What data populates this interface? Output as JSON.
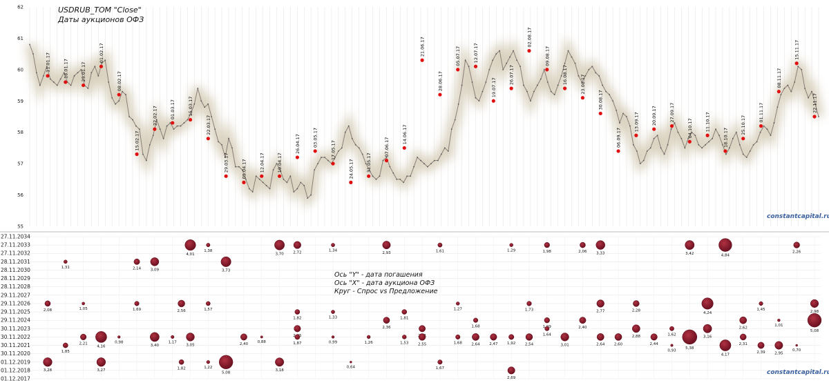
{
  "top_title": "USDRUB_TOM  \"Close\"",
  "top_subtitle": "Даты  аукционов ОФЗ",
  "watermark": "constantcapital.ru",
  "legend_lines": [
    "Ось \"Y\" -  дата погашения",
    "Ось \"X\" - дата аукциона ОФЗ",
    "Круг - Спрос vs Предложение"
  ],
  "colors": {
    "line": "#8a7e78",
    "glow": "#d6cdb8",
    "dot": "#e01010",
    "bubble": "#8a1c2c",
    "grid": "#d8d8d8",
    "brand": "#3a5f9e"
  },
  "chart_data": [
    {
      "type": "line",
      "title": "USDRUB_TOM  \"Close\"",
      "subtitle": "Даты  аукционов ОФЗ",
      "ylim": [
        55,
        62
      ],
      "yticks": [
        55,
        56,
        57,
        58,
        59,
        60,
        61,
        62
      ],
      "grid": "vertical",
      "close_series": [
        60.8,
        60.5,
        59.9,
        59.5,
        59.8,
        60.1,
        59.7,
        59.6,
        59.5,
        59.7,
        59.9,
        59.6,
        59.5,
        59.8,
        59.9,
        60.0,
        59.5,
        59.4,
        59.9,
        60.1,
        59.8,
        60.2,
        60.3,
        59.6,
        59.1,
        58.9,
        59.0,
        59.3,
        59.2,
        58.5,
        58.4,
        58.2,
        58.1,
        57.3,
        57.1,
        57.6,
        57.9,
        58.4,
        58.1,
        57.8,
        58.2,
        58.3,
        58.1,
        58.2,
        58.2,
        58.3,
        58.4,
        58.6,
        58.9,
        59.4,
        59.0,
        58.8,
        58.9,
        58.5,
        58.1,
        57.7,
        57.6,
        57.2,
        57.8,
        57.5,
        56.9,
        56.9,
        56.8,
        56.5,
        56.2,
        56.1,
        56.6,
        56.5,
        56.4,
        56.3,
        56.2,
        56.8,
        57.0,
        56.8,
        56.5,
        56.4,
        56.6,
        56.1,
        56.2,
        56.4,
        56.3,
        55.9,
        56.0,
        56.8,
        57.0,
        57.2,
        57.2,
        57.1,
        57.0,
        57.2,
        57.4,
        57.5,
        58.0,
        58.2,
        57.8,
        57.6,
        57.5,
        57.3,
        57.0,
        56.8,
        56.6,
        56.5,
        56.6,
        57.1,
        57.2,
        56.9,
        56.7,
        56.5,
        56.5,
        56.4,
        56.6,
        56.6,
        56.9,
        57.2,
        57.1,
        57.0,
        56.9,
        57.0,
        57.1,
        57.1,
        57.3,
        57.5,
        57.4,
        58.1,
        58.4,
        58.9,
        59.5,
        60.3,
        60.1,
        59.6,
        59.1,
        59.0,
        59.3,
        59.6,
        60.0,
        60.3,
        60.5,
        60.6,
        60.0,
        60.2,
        60.4,
        60.6,
        60.3,
        60.1,
        59.5,
        59.3,
        59.0,
        59.3,
        59.5,
        59.7,
        60.0,
        59.6,
        59.3,
        59.2,
        59.5,
        59.8,
        60.2,
        60.6,
        60.4,
        60.2,
        59.8,
        59.6,
        59.8,
        60.0,
        60.1,
        59.9,
        59.8,
        59.5,
        59.3,
        59.2,
        59.0,
        58.7,
        58.3,
        58.6,
        58.5,
        58.2,
        57.6,
        57.4,
        57.0,
        57.1,
        57.4,
        57.5,
        57.8,
        57.9,
        57.5,
        57.3,
        57.6,
        58.1,
        58.3,
        58.0,
        57.8,
        57.5,
        57.8,
        58.0,
        57.9,
        57.6,
        57.5,
        57.6,
        57.7,
        57.8,
        58.1,
        57.9,
        57.6,
        57.3,
        57.5,
        57.8,
        58.0,
        57.6,
        57.3,
        57.2,
        57.4,
        57.6,
        57.7,
        58.0,
        58.2,
        58.1,
        57.9,
        58.3,
        58.8,
        59.2,
        59.4,
        59.5,
        59.3,
        59.6,
        60.1,
        60.0,
        59.4,
        59.1,
        59.3,
        58.9,
        58.5
      ],
      "auctions": [
        {
          "date": "11.01.17",
          "value": 59.8
        },
        {
          "date": "18.01.17",
          "value": 59.6
        },
        {
          "date": "25.01.17",
          "value": 59.5
        },
        {
          "date": "01.02.17",
          "value": 60.1
        },
        {
          "date": "08.02.17",
          "value": 59.2
        },
        {
          "date": "15.02.17",
          "value": 57.3
        },
        {
          "date": "22.02.17",
          "value": 58.1
        },
        {
          "date": "01.03.17",
          "value": 58.3
        },
        {
          "date": "15.03.17",
          "value": 58.4
        },
        {
          "date": "22.03.17",
          "value": 57.8
        },
        {
          "date": "29.03.17",
          "value": 56.6
        },
        {
          "date": "05.04.17",
          "value": 56.4
        },
        {
          "date": "12.04.17",
          "value": 56.6
        },
        {
          "date": "19.04.17",
          "value": 56.6
        },
        {
          "date": "26.04.17",
          "value": 57.2
        },
        {
          "date": "03.05.17",
          "value": 57.4
        },
        {
          "date": "17.05.17",
          "value": 57.0
        },
        {
          "date": "24.05.17",
          "value": 56.4
        },
        {
          "date": "31.05.17",
          "value": 56.6
        },
        {
          "date": "07.06.17",
          "value": 57.1
        },
        {
          "date": "14.06.17",
          "value": 57.5
        },
        {
          "date": "21.06.17",
          "value": 60.3
        },
        {
          "date": "28.06.17",
          "value": 59.2
        },
        {
          "date": "05.07.17",
          "value": 60.0
        },
        {
          "date": "12.07.17",
          "value": 60.1
        },
        {
          "date": "19.07.17",
          "value": 59.0
        },
        {
          "date": "26.07.17",
          "value": 59.4
        },
        {
          "date": "02.08.17",
          "value": 60.6
        },
        {
          "date": "09.08.17",
          "value": 60.0
        },
        {
          "date": "16.08.17",
          "value": 59.4
        },
        {
          "date": "23.08.17",
          "value": 59.1
        },
        {
          "date": "30.08.17",
          "value": 58.6
        },
        {
          "date": "06.09.17",
          "value": 57.4
        },
        {
          "date": "13.09.17",
          "value": 57.9
        },
        {
          "date": "20.09.17",
          "value": 58.1
        },
        {
          "date": "27.09.17",
          "value": 58.2
        },
        {
          "date": "04.10.17",
          "value": 57.7
        },
        {
          "date": "11.10.17",
          "value": 57.9
        },
        {
          "date": "18.10.17",
          "value": 57.4
        },
        {
          "date": "25.10.17",
          "value": 57.8
        },
        {
          "date": "01.11.17",
          "value": 58.2
        },
        {
          "date": "08.11.17",
          "value": 59.3
        },
        {
          "date": "15.11.17",
          "value": 60.2
        },
        {
          "date": "22.11.17",
          "value": 58.5
        }
      ]
    },
    {
      "type": "scatter",
      "ylabel": "Ось \"Y\" -  дата погашения",
      "xlabel": "Ось \"X\" - дата аукциона ОФЗ",
      "size_label": "Круг - Спрос vs Предложение",
      "y_categories": [
        "27.11.2034",
        "27.11.2033",
        "27.11.2032",
        "28.11.2031",
        "28.11.2030",
        "28.11.2029",
        "28.11.2028",
        "29.11.2027",
        "29.11.2026",
        "29.11.2025",
        "29.11.2024",
        "30.11.2023",
        "30.11.2022",
        "30.11.2021",
        "30.11.2020",
        "01.12.2019",
        "01.12.2018",
        "01.12.2017"
      ],
      "points": [
        {
          "x": "11.01.17",
          "y": "01.12.2019",
          "size": 3.28
        },
        {
          "x": "11.01.17",
          "y": "29.11.2026",
          "size": 2.08
        },
        {
          "x": "18.01.17",
          "y": "28.11.2031",
          "size": 1.31
        },
        {
          "x": "18.01.17",
          "y": "30.11.2021",
          "size": 1.85
        },
        {
          "x": "25.01.17",
          "y": "29.11.2026",
          "size": 1.05
        },
        {
          "x": "25.01.17",
          "y": "30.11.2022",
          "size": 2.21
        },
        {
          "x": "01.02.17",
          "y": "30.11.2022",
          "size": 4.16
        },
        {
          "x": "01.02.17",
          "y": "01.12.2019",
          "size": 3.27
        },
        {
          "x": "08.02.17",
          "y": "30.11.2022",
          "size": 0.98
        },
        {
          "x": "15.02.17",
          "y": "28.11.2031",
          "size": 2.14
        },
        {
          "x": "15.02.17",
          "y": "29.11.2026",
          "size": 1.69
        },
        {
          "x": "22.02.17",
          "y": "28.11.2031",
          "size": 3.09
        },
        {
          "x": "22.02.17",
          "y": "30.11.2022",
          "size": 3.4
        },
        {
          "x": "01.03.17",
          "y": "30.11.2022",
          "size": 1.17
        },
        {
          "x": "08.03.17",
          "y": "29.11.2026",
          "size": 2.56
        },
        {
          "x": "08.03.17",
          "y": "01.12.2019",
          "size": 1.82
        },
        {
          "x": "15.03.17",
          "y": "27.11.2033",
          "size": 4.01
        },
        {
          "x": "15.03.17",
          "y": "30.11.2022",
          "size": 3.05
        },
        {
          "x": "22.03.17",
          "y": "27.11.2033",
          "size": 1.38
        },
        {
          "x": "22.03.17",
          "y": "29.11.2026",
          "size": 1.57
        },
        {
          "x": "22.03.17",
          "y": "01.12.2019",
          "size": 1.22
        },
        {
          "x": "29.03.17",
          "y": "28.11.2031",
          "size": 3.73
        },
        {
          "x": "29.03.17",
          "y": "01.12.2019",
          "size": 5.08
        },
        {
          "x": "05.04.17",
          "y": "30.11.2022",
          "size": 2.4
        },
        {
          "x": "12.04.17",
          "y": "30.11.2022",
          "size": 0.88
        },
        {
          "x": "19.04.17",
          "y": "27.11.2033",
          "size": 3.7
        },
        {
          "x": "19.04.17",
          "y": "01.12.2019",
          "size": 3.18
        },
        {
          "x": "26.04.17",
          "y": "27.11.2033",
          "size": 2.72
        },
        {
          "x": "26.04.17",
          "y": "29.11.2025",
          "size": 1.82
        },
        {
          "x": "26.04.17",
          "y": "30.11.2023",
          "size": 2.45
        },
        {
          "x": "26.04.17",
          "y": "30.11.2022",
          "size": 1.87
        },
        {
          "x": "17.05.17",
          "y": "27.11.2033",
          "size": 1.34
        },
        {
          "x": "17.05.17",
          "y": "29.11.2025",
          "size": 1.33
        },
        {
          "x": "17.05.17",
          "y": "30.11.2022",
          "size": 0.99
        },
        {
          "x": "24.05.17",
          "y": "01.12.2019",
          "size": 0.64
        },
        {
          "x": "31.05.17",
          "y": "30.11.2022",
          "size": 1.26
        },
        {
          "x": "07.06.17",
          "y": "27.11.2033",
          "size": 2.93
        },
        {
          "x": "07.06.17",
          "y": "29.11.2024",
          "size": 2.36
        },
        {
          "x": "14.06.17",
          "y": "29.11.2025",
          "size": 1.81
        },
        {
          "x": "14.06.17",
          "y": "30.11.2022",
          "size": 1.53
        },
        {
          "x": "21.06.17",
          "y": "30.11.2023",
          "size": 2.41
        },
        {
          "x": "21.06.17",
          "y": "30.11.2022",
          "size": 2.55
        },
        {
          "x": "28.06.17",
          "y": "27.11.2033",
          "size": 1.61
        },
        {
          "x": "28.06.17",
          "y": "01.12.2019",
          "size": 1.67
        },
        {
          "x": "05.07.17",
          "y": "29.11.2026",
          "size": 1.27
        },
        {
          "x": "05.07.17",
          "y": "30.11.2022",
          "size": 1.68
        },
        {
          "x": "12.07.17",
          "y": "29.11.2024",
          "size": 1.68
        },
        {
          "x": "12.07.17",
          "y": "30.11.2022",
          "size": 2.64
        },
        {
          "x": "19.07.17",
          "y": "30.11.2022",
          "size": 2.47
        },
        {
          "x": "26.07.17",
          "y": "27.11.2033",
          "size": 1.29
        },
        {
          "x": "26.07.17",
          "y": "30.11.2022",
          "size": 1.92
        },
        {
          "x": "26.07.17",
          "y": "01.12.2018",
          "size": 2.69
        },
        {
          "x": "02.08.17",
          "y": "29.11.2026",
          "size": 1.73
        },
        {
          "x": "02.08.17",
          "y": "30.11.2022",
          "size": 2.54
        },
        {
          "x": "09.08.17",
          "y": "27.11.2033",
          "size": 1.98
        },
        {
          "x": "09.08.17",
          "y": "29.11.2024",
          "size": 1.99
        },
        {
          "x": "09.08.17",
          "y": "30.11.2023",
          "size": 1.64
        },
        {
          "x": "16.08.17",
          "y": "30.11.2022",
          "size": 3.01
        },
        {
          "x": "23.08.17",
          "y": "27.11.2033",
          "size": 2.06
        },
        {
          "x": "23.08.17",
          "y": "29.11.2024",
          "size": 2.4
        },
        {
          "x": "30.08.17",
          "y": "27.11.2033",
          "size": 3.33
        },
        {
          "x": "30.08.17",
          "y": "29.11.2026",
          "size": 2.77
        },
        {
          "x": "30.08.17",
          "y": "30.11.2022",
          "size": 2.64
        },
        {
          "x": "06.09.17",
          "y": "30.11.2022",
          "size": 2.6
        },
        {
          "x": "13.09.17",
          "y": "29.11.2026",
          "size": 2.28
        },
        {
          "x": "13.09.17",
          "y": "30.11.2023",
          "size": 2.88
        },
        {
          "x": "20.09.17",
          "y": "30.11.2022",
          "size": 2.44
        },
        {
          "x": "27.09.17",
          "y": "30.11.2021",
          "size": 0.93
        },
        {
          "x": "27.09.17",
          "y": "30.11.2023",
          "size": 1.62
        },
        {
          "x": "04.10.17",
          "y": "27.11.2033",
          "size": 3.42
        },
        {
          "x": "04.10.17",
          "y": "30.11.2022",
          "size": 5.38
        },
        {
          "x": "11.10.17",
          "y": "29.11.2026",
          "size": 4.24
        },
        {
          "x": "11.10.17",
          "y": "30.11.2023",
          "size": 3.16
        },
        {
          "x": "18.10.17",
          "y": "27.11.2033",
          "size": 4.84
        },
        {
          "x": "18.10.17",
          "y": "30.11.2021",
          "size": 4.17
        },
        {
          "x": "25.10.17",
          "y": "29.11.2024",
          "size": 2.62
        },
        {
          "x": "25.10.17",
          "y": "30.11.2022",
          "size": 2.31
        },
        {
          "x": "01.11.17",
          "y": "29.11.2026",
          "size": 1.45
        },
        {
          "x": "01.11.17",
          "y": "30.11.2021",
          "size": 2.39
        },
        {
          "x": "08.11.17",
          "y": "29.11.2024",
          "size": 1.01
        },
        {
          "x": "08.11.17",
          "y": "30.11.2021",
          "size": 2.95
        },
        {
          "x": "15.11.17",
          "y": "27.11.2033",
          "size": 2.26
        },
        {
          "x": "22.11.17",
          "y": "29.11.2026",
          "size": 2.98
        },
        {
          "x": "22.11.17",
          "y": "29.11.2024",
          "size": 5.08
        },
        {
          "x": "15.11.17",
          "y": "30.11.2021",
          "size": 0.7
        }
      ]
    }
  ]
}
